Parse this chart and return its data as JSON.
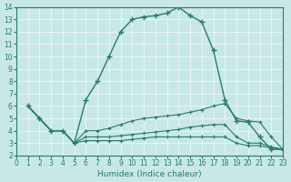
{
  "xlabel": "Humidex (Indice chaleur)",
  "bg_color": "#c8e8e8",
  "line_color": "#2a7a6a",
  "xlim": [
    0,
    23
  ],
  "ylim": [
    2,
    14
  ],
  "xticks": [
    0,
    1,
    2,
    3,
    4,
    5,
    6,
    7,
    8,
    9,
    10,
    11,
    12,
    13,
    14,
    15,
    16,
    17,
    18,
    19,
    20,
    21,
    22,
    23
  ],
  "yticks": [
    2,
    3,
    4,
    5,
    6,
    7,
    8,
    9,
    10,
    11,
    12,
    13,
    14
  ],
  "lines": [
    {
      "x": [
        1,
        2,
        3,
        4,
        5,
        6,
        7,
        8,
        9,
        10,
        11,
        12,
        13,
        14,
        15,
        16,
        17,
        18,
        19,
        20,
        21,
        22,
        23
      ],
      "y": [
        6,
        5,
        4,
        4,
        3,
        6.5,
        8,
        10,
        12,
        13,
        13.2,
        13.3,
        13.5,
        14,
        13.3,
        12.8,
        10.5,
        6.5,
        4.8,
        4.7,
        3.5,
        2.5,
        2.5
      ],
      "main": true
    },
    {
      "x": [
        1,
        2,
        3,
        4,
        5,
        6,
        7,
        8,
        9,
        10,
        11,
        12,
        13,
        14,
        15,
        16,
        17,
        18,
        19,
        20,
        21,
        22,
        23
      ],
      "y": [
        6,
        5,
        4,
        4,
        3,
        4,
        4,
        4.2,
        4.5,
        4.8,
        5,
        5.1,
        5.2,
        5.3,
        5.5,
        5.7,
        6,
        6.2,
        5.0,
        4.8,
        4.7,
        3.5,
        2.5
      ],
      "main": false
    },
    {
      "x": [
        1,
        2,
        3,
        4,
        5,
        6,
        7,
        8,
        9,
        10,
        11,
        12,
        13,
        14,
        15,
        16,
        17,
        18,
        19,
        20,
        21,
        22,
        23
      ],
      "y": [
        6,
        5,
        4,
        4,
        3,
        3.5,
        3.5,
        3.5,
        3.6,
        3.7,
        3.8,
        3.9,
        4.0,
        4.1,
        4.3,
        4.4,
        4.5,
        4.5,
        3.5,
        3.0,
        3.0,
        2.7,
        2.5
      ],
      "main": false
    },
    {
      "x": [
        1,
        2,
        3,
        4,
        5,
        6,
        7,
        8,
        9,
        10,
        11,
        12,
        13,
        14,
        15,
        16,
        17,
        18,
        19,
        20,
        21,
        22,
        23
      ],
      "y": [
        6,
        5,
        4,
        4,
        3,
        3.2,
        3.2,
        3.2,
        3.2,
        3.3,
        3.4,
        3.5,
        3.5,
        3.5,
        3.5,
        3.5,
        3.5,
        3.5,
        3.0,
        2.8,
        2.8,
        2.6,
        2.5
      ],
      "main": false
    }
  ]
}
